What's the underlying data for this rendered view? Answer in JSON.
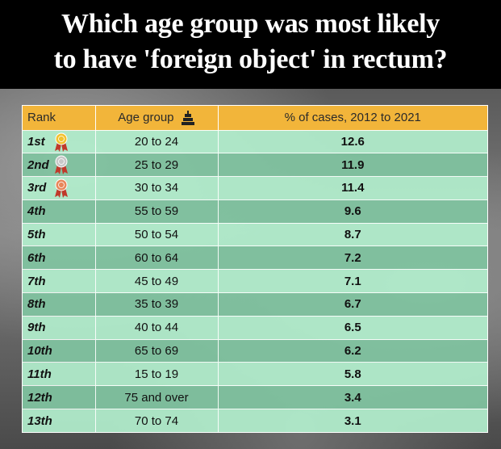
{
  "headline": {
    "line1": "Which age group was most likely",
    "line2": "to have 'foreign object' in rectum?"
  },
  "colors": {
    "header_bg": "#f2b53a",
    "row_light": "#b2eecc",
    "row_dark": "#80c4a0",
    "gold": "#f2c230",
    "silver": "#c8c8c8",
    "bronze": "#e8875a"
  },
  "icons": {
    "age_header": "cake-icon",
    "rank_1": "gold-medal-icon",
    "rank_2": "silver-medal-icon",
    "rank_3": "bronze-medal-icon"
  },
  "chart_data": {
    "type": "table",
    "columns": [
      "Rank",
      "Age group",
      "% of cases, 2012 to 2021"
    ],
    "rows": [
      {
        "rank": "1st",
        "age": "20 to 24",
        "pct": "12.6"
      },
      {
        "rank": "2nd",
        "age": "25 to 29",
        "pct": "11.9"
      },
      {
        "rank": "3rd",
        "age": "30 to 34",
        "pct": "11.4"
      },
      {
        "rank": "4th",
        "age": "55 to 59",
        "pct": "9.6"
      },
      {
        "rank": "5th",
        "age": "50 to 54",
        "pct": "8.7"
      },
      {
        "rank": "6th",
        "age": "60 to 64",
        "pct": "7.2"
      },
      {
        "rank": "7th",
        "age": "45 to 49",
        "pct": "7.1"
      },
      {
        "rank": "8th",
        "age": "35 to 39",
        "pct": "6.7"
      },
      {
        "rank": "9th",
        "age": "40 to 44",
        "pct": "6.5"
      },
      {
        "rank": "10th",
        "age": "65 to 69",
        "pct": "6.2"
      },
      {
        "rank": "11th",
        "age": "15 to 19",
        "pct": "5.8"
      },
      {
        "rank": "12th",
        "age": "75 and over",
        "pct": "3.4"
      },
      {
        "rank": "13th",
        "age": "70 to 74",
        "pct": "3.1"
      }
    ]
  }
}
